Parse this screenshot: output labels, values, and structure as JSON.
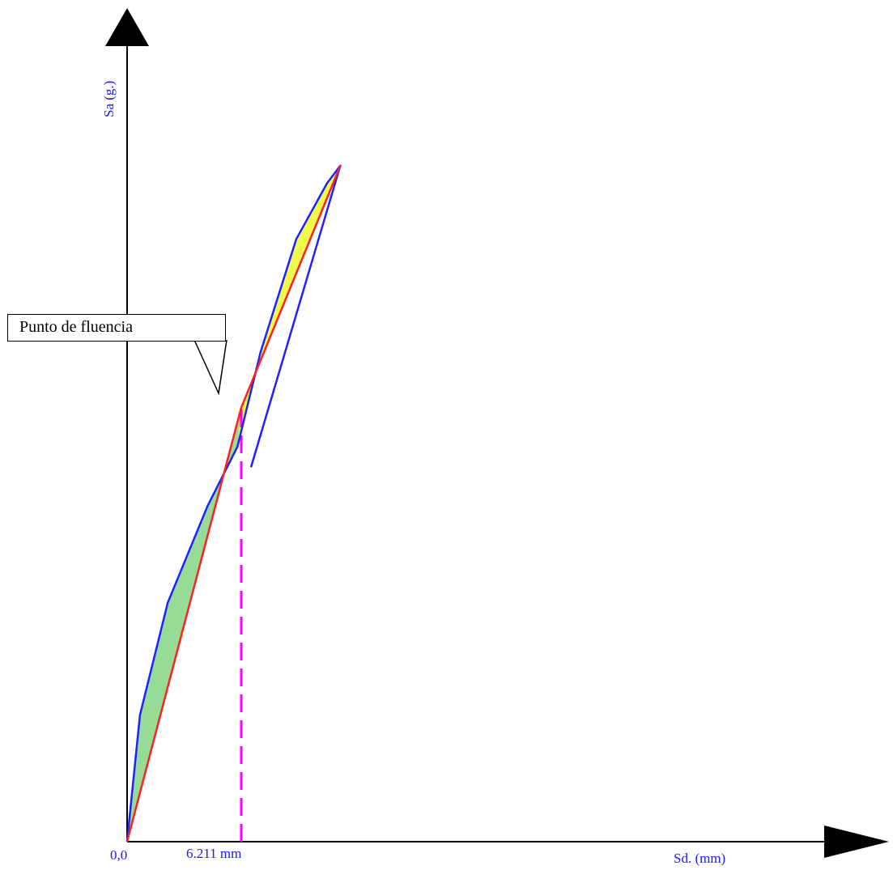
{
  "chart_data": {
    "type": "line",
    "xlabel": "Sd. (mm)",
    "ylabel": "Sa (g.)",
    "origin_label": "0,0",
    "x_tick_label": "6.211 mm",
    "annotation": "Punto de fluencia",
    "yield_point_sd_mm": 6.211,
    "grid": false,
    "legend": "none",
    "colors": {
      "capacity_curve": "#2020ff",
      "bilinear": "#ff2020",
      "area_fill": "#ffff40",
      "area_fill_green": "#40c040",
      "yield_marker": "#ff00ff",
      "axes": "#000000",
      "labels": "#1a1aff"
    },
    "series": [
      {
        "role": "capacity curve",
        "color": "#2020ff",
        "points": [
          [
            0,
            0
          ],
          [
            0.7,
            0.174
          ],
          [
            2.21,
            0.328
          ],
          [
            4.38,
            0.461
          ],
          [
            6.0,
            0.542
          ],
          [
            7.26,
            0.672
          ],
          [
            9.2,
            0.827
          ],
          [
            10.88,
            0.904
          ],
          [
            11.6,
            0.928
          ],
          [
            6.74,
            0.514
          ]
        ]
      },
      {
        "role": "bilinear idealization",
        "color": "#ff2020",
        "points": [
          [
            0,
            0
          ],
          [
            6.211,
            0.596
          ],
          [
            11.6,
            0.928
          ]
        ]
      }
    ]
  }
}
